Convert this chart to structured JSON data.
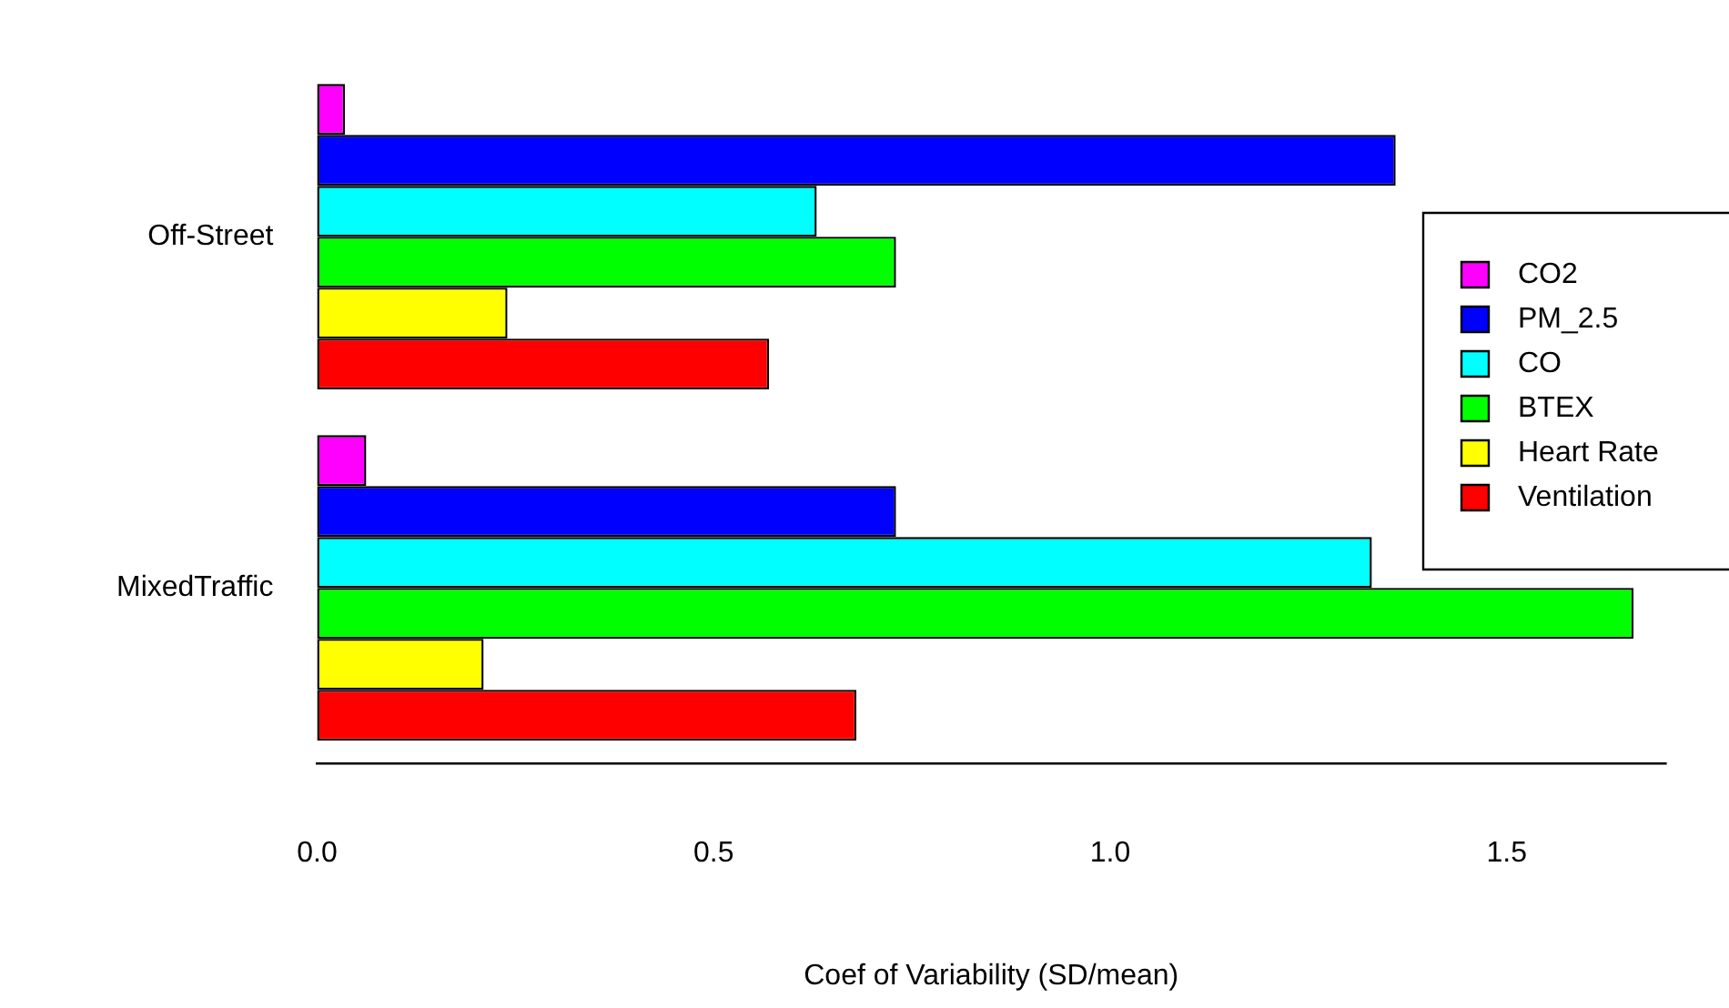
{
  "chart_data": {
    "type": "bar",
    "orientation": "horizontal",
    "xlabel": "Coef of Variability (SD/mean)",
    "categories": [
      "Off-Street",
      "MixedTraffic"
    ],
    "series": [
      {
        "name": "CO2",
        "color": "#ff00ff",
        "values": [
          0.035,
          0.062
        ]
      },
      {
        "name": "PM_2.5",
        "color": "#0000ff",
        "values": [
          1.36,
          0.73
        ]
      },
      {
        "name": "CO",
        "color": "#00ffff",
        "values": [
          0.63,
          1.33
        ]
      },
      {
        "name": "BTEX",
        "color": "#00ff00",
        "values": [
          0.73,
          1.66
        ]
      },
      {
        "name": "Heart Rate",
        "color": "#ffff00",
        "values": [
          0.24,
          0.21
        ]
      },
      {
        "name": "Ventilation",
        "color": "#ff0000",
        "values": [
          0.57,
          0.68
        ]
      }
    ],
    "xlim": [
      0,
      1.7
    ],
    "xticks": [
      {
        "value": 0,
        "label": "0.0"
      },
      {
        "value": 0.5,
        "label": "0.5"
      },
      {
        "value": 1,
        "label": "1.0"
      },
      {
        "value": 1.5,
        "label": "1.5"
      }
    ],
    "grid": false,
    "legend": "right"
  }
}
